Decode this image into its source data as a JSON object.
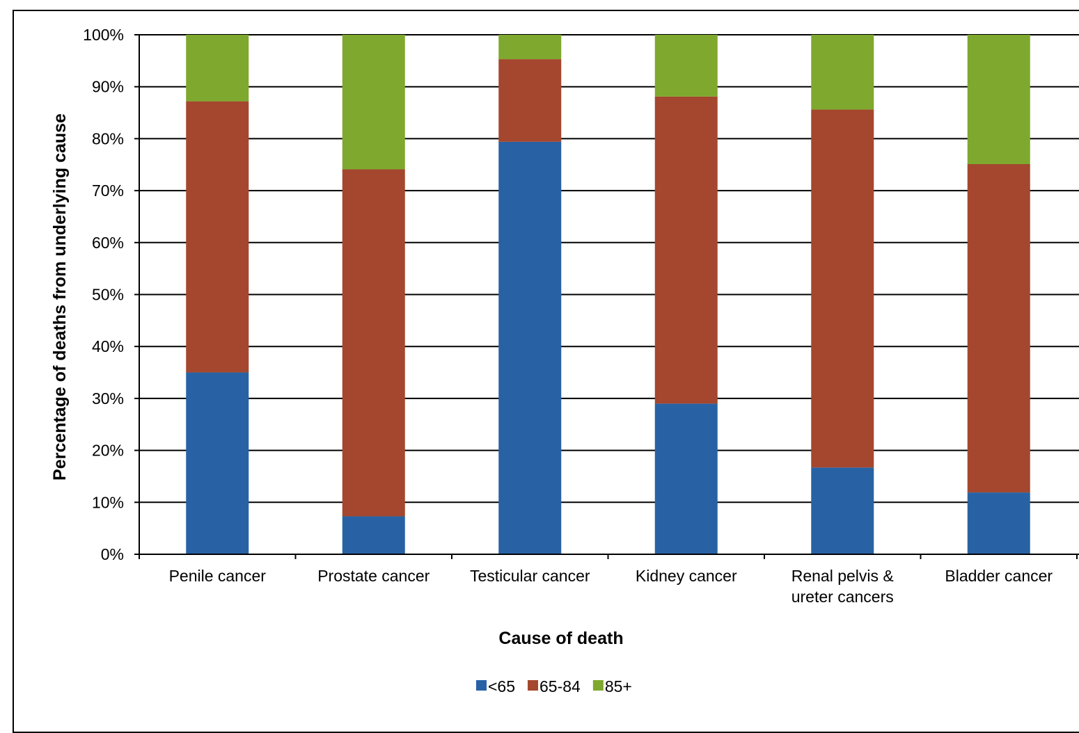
{
  "chart_data": {
    "type": "bar",
    "stacked": true,
    "categories": [
      [
        "Penile cancer"
      ],
      [
        "Prostate cancer"
      ],
      [
        "Testicular cancer"
      ],
      [
        "Kidney cancer"
      ],
      [
        "Renal pelvis &",
        "ureter cancers"
      ],
      [
        "Bladder cancer"
      ]
    ],
    "series": [
      {
        "name": "<65",
        "color": "#2862a4",
        "values": [
          35,
          7.3,
          79.4,
          29,
          16.7,
          11.9
        ]
      },
      {
        "name": "65-84",
        "color": "#a4472e",
        "values": [
          52.2,
          66.8,
          15.9,
          59.1,
          68.9,
          63.2
        ]
      },
      {
        "name": "85+",
        "color": "#7ea82e",
        "values": [
          12.8,
          25.9,
          4.7,
          11.9,
          14.4,
          24.9
        ]
      }
    ],
    "xlabel": "Cause of death",
    "ylabel": "Percentage of deaths from underlying cause",
    "ylim": [
      0,
      100
    ],
    "yticks": [
      "0%",
      "10%",
      "20%",
      "30%",
      "40%",
      "50%",
      "60%",
      "70%",
      "80%",
      "90%",
      "100%"
    ],
    "grid": true,
    "legend_position": "bottom"
  }
}
